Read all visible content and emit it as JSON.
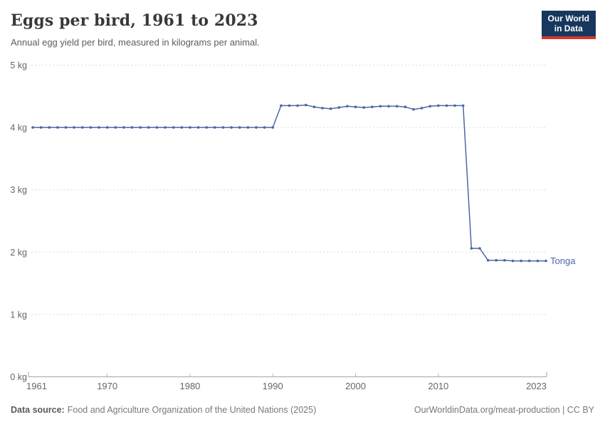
{
  "header": {
    "title": "Eggs per bird, 1961 to 2023",
    "subtitle": "Annual egg yield per bird, measured in kilograms per animal.",
    "logo_line1": "Our World",
    "logo_line2": "in Data"
  },
  "footer": {
    "source_label": "Data source:",
    "source_text": "Food and Agriculture Organization of the United Nations (2025)",
    "citation": "OurWorldinData.org/meat-production | CC BY"
  },
  "colors": {
    "series_blue": "#4a67a5",
    "logo_bg": "#18375f",
    "logo_accent": "#d8352a",
    "grid": "#dcdcdc",
    "axis": "#a3a3a3",
    "tick": "#b3b3b3",
    "tick_text": "#666666"
  },
  "chart_data": {
    "type": "line",
    "title": "Eggs per bird, 1961 to 2023",
    "subtitle": "Annual egg yield per bird, measured in kilograms per animal.",
    "xlabel": "",
    "ylabel": "kilograms per animal",
    "xlim": [
      1961,
      2023
    ],
    "ylim": [
      0,
      5
    ],
    "xticks": [
      1961,
      1970,
      1980,
      1990,
      2000,
      2010,
      2023
    ],
    "yticks": [
      0,
      1,
      2,
      3,
      4,
      5
    ],
    "ytick_suffix": " kg",
    "grid": "horizontal-dashed",
    "legend": "end-of-line-label",
    "series": [
      {
        "name": "Tonga",
        "color": "#4a67a5",
        "x": [
          1961,
          1962,
          1963,
          1964,
          1965,
          1966,
          1967,
          1968,
          1969,
          1970,
          1971,
          1972,
          1973,
          1974,
          1975,
          1976,
          1977,
          1978,
          1979,
          1980,
          1981,
          1982,
          1983,
          1984,
          1985,
          1986,
          1987,
          1988,
          1989,
          1990,
          1991,
          1992,
          1993,
          1994,
          1995,
          1996,
          1997,
          1998,
          1999,
          2000,
          2001,
          2002,
          2003,
          2004,
          2005,
          2006,
          2007,
          2008,
          2009,
          2010,
          2011,
          2012,
          2013,
          2014,
          2015,
          2016,
          2017,
          2018,
          2019,
          2020,
          2021,
          2022,
          2023
        ],
        "values": [
          4,
          4,
          4,
          4,
          4,
          4,
          4,
          4,
          4,
          4,
          4,
          4,
          4,
          4,
          4,
          4,
          4,
          4,
          4,
          4,
          4,
          4,
          4,
          4,
          4,
          4,
          4,
          4,
          4,
          4,
          4.35,
          4.35,
          4.35,
          4.36,
          4.33,
          4.31,
          4.3,
          4.32,
          4.34,
          4.33,
          4.32,
          4.33,
          4.34,
          4.34,
          4.34,
          4.33,
          4.29,
          4.31,
          4.34,
          4.35,
          4.35,
          4.35,
          4.35,
          2.06,
          2.06,
          1.87,
          1.87,
          1.87,
          1.86,
          1.86,
          1.86,
          1.86,
          1.86
        ]
      }
    ]
  }
}
